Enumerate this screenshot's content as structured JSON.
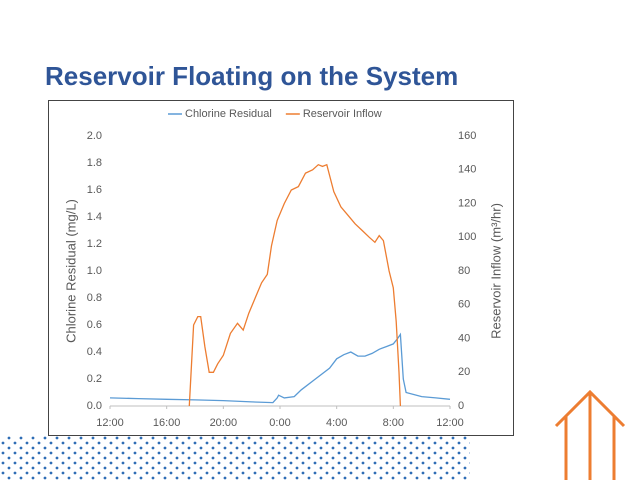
{
  "chart_data": {
    "type": "line",
    "title": "Reservoir Floating on the System",
    "y_label": "Chlorine Residual (mg/L)",
    "y2_label": "Reservoir Inflow (m³/hr)",
    "xlim": [
      0,
      24
    ],
    "xticks": [
      {
        "value": 0,
        "label": "12:00"
      },
      {
        "value": 4,
        "label": "16:00"
      },
      {
        "value": 8,
        "label": "20:00"
      },
      {
        "value": 12,
        "label": "0:00"
      },
      {
        "value": 16,
        "label": "4:00"
      },
      {
        "value": 20,
        "label": "8:00"
      },
      {
        "value": 24,
        "label": "12:00"
      }
    ],
    "ylim": [
      0,
      2
    ],
    "yticks": [
      {
        "value": 0,
        "label": "0.0"
      },
      0.2,
      0.4,
      0.6,
      0.8,
      {
        "value": 1,
        "label": "1.0"
      },
      1.2,
      1.4,
      1.6,
      1.8,
      {
        "value": 2,
        "label": "2.0"
      }
    ],
    "y2lim": [
      0,
      160
    ],
    "y2ticks": [
      0,
      20,
      40,
      60,
      80,
      100,
      120,
      140,
      160
    ],
    "legend": "top",
    "series": [
      {
        "name": "Chlorine Residual",
        "color": "#5b9bd5",
        "x": [
          0,
          2,
          4,
          6,
          8,
          10,
          11.5,
          11.8,
          11.9,
          12.3,
          13,
          13.5,
          14.5,
          15.5,
          16,
          16.5,
          17,
          17.5,
          18,
          18.5,
          19,
          19.5,
          20,
          20.3,
          20.5,
          20.7,
          20.9,
          22,
          23,
          24
        ],
        "values": [
          0.06,
          0.055,
          0.05,
          0.045,
          0.04,
          0.03,
          0.025,
          0.06,
          0.08,
          0.06,
          0.07,
          0.12,
          0.2,
          0.28,
          0.35,
          0.38,
          0.4,
          0.37,
          0.37,
          0.39,
          0.42,
          0.44,
          0.46,
          0.5,
          0.53,
          0.2,
          0.1,
          0.07,
          0.06,
          0.05
        ]
      },
      {
        "name": "Reservoir Inflow",
        "color": "#ed7d31",
        "axis": "y2",
        "x": [
          5.6,
          5.9,
          6.2,
          6.4,
          6.7,
          7.0,
          7.3,
          7.6,
          8.0,
          8.5,
          9.0,
          9.4,
          9.8,
          10.3,
          10.7,
          11.1,
          11.4,
          11.8,
          12.3,
          12.8,
          13.3,
          13.8,
          14.3,
          14.7,
          15.0,
          15.3,
          15.8,
          16.3,
          16.8,
          17.3,
          17.8,
          18.3,
          18.7,
          19.0,
          19.3,
          19.7,
          20.0,
          20.2,
          20.4,
          20.5
        ],
        "values": [
          0,
          48,
          53,
          53,
          35,
          20,
          20,
          25,
          30,
          43,
          49,
          45,
          55,
          65,
          73,
          78,
          95,
          110,
          120,
          128,
          130,
          138,
          140,
          143,
          142,
          143,
          127,
          118,
          113,
          108,
          104,
          100,
          97,
          101,
          98,
          80,
          70,
          50,
          20,
          0
        ]
      }
    ]
  }
}
